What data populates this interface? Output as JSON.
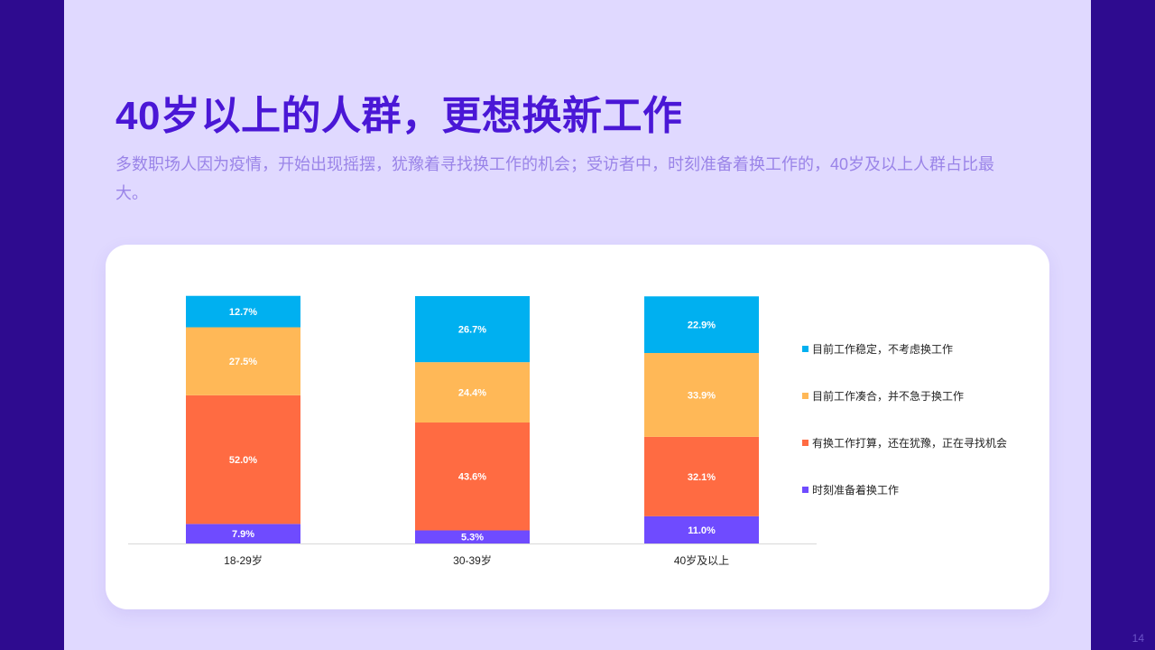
{
  "slide": {
    "title": "40岁以上的人群，更想换新工作",
    "subtitle": "多数职场人因为疫情，开始出现摇摆，犹豫着寻找换工作的机会；受访者中，时刻准备着换工作的，40岁及以上人群占比最大。",
    "page_number": "14"
  },
  "colors": {
    "frame": "#2e0b8f",
    "slide_bg": "#e0d9ff",
    "title": "#4a17d6",
    "subtitle": "#9a84e8",
    "card_bg": "#ffffff"
  },
  "chart_data": {
    "type": "bar",
    "stacked": true,
    "categories": [
      "18-29岁",
      "30-39岁",
      "40岁及以上"
    ],
    "series": [
      {
        "name": "时刻准备着换工作",
        "color": "#6f4bff",
        "values": [
          7.9,
          5.3,
          11.0
        ],
        "labels": [
          "7.9%",
          "5.3%",
          "11.0%"
        ]
      },
      {
        "name": "有换工作打算，还在犹豫，正在寻找机会",
        "color": "#ff6b42",
        "values": [
          52.0,
          43.6,
          32.1
        ],
        "labels": [
          "52.0%",
          "43.6%",
          "32.1%"
        ]
      },
      {
        "name": "目前工作凑合，并不急于换工作",
        "color": "#ffb857",
        "values": [
          27.5,
          24.4,
          33.9
        ],
        "labels": [
          "27.5%",
          "24.4%",
          "33.9%"
        ]
      },
      {
        "name": "目前工作稳定，不考虑换工作",
        "color": "#00b0f0",
        "values": [
          12.7,
          26.7,
          22.9
        ],
        "labels": [
          "12.7%",
          "26.7%",
          "22.9%"
        ]
      }
    ],
    "legend_order": [
      "目前工作稳定，不考虑换工作",
      "目前工作凑合，并不急于换工作",
      "有换工作打算，还在犹豫，正在寻找机会",
      "时刻准备着换工作"
    ],
    "ylim": [
      0,
      100
    ],
    "legend_position": "right",
    "grid": false
  }
}
